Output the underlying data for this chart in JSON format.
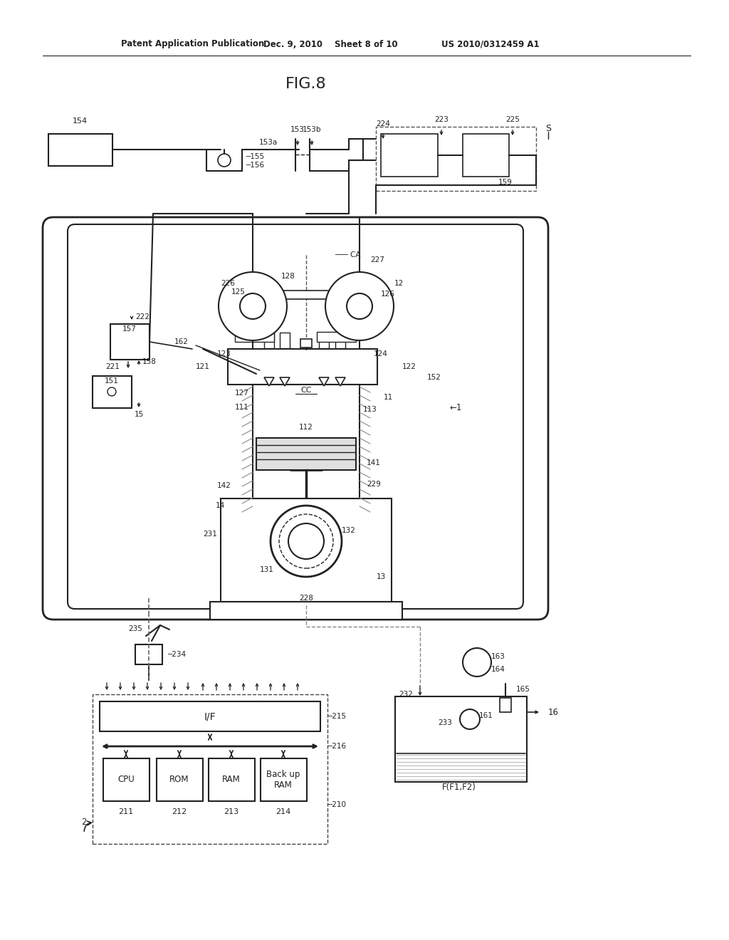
{
  "bg_color": "#ffffff",
  "line_color": "#222222",
  "header_text1": "Patent Application Publication",
  "header_text2": "Dec. 9, 2010",
  "header_text3": "Sheet 8 of 10",
  "header_text4": "US 2010/0312459 A1",
  "title": "FIG.8",
  "fig_width": 10.24,
  "fig_height": 13.2,
  "dpi": 100
}
